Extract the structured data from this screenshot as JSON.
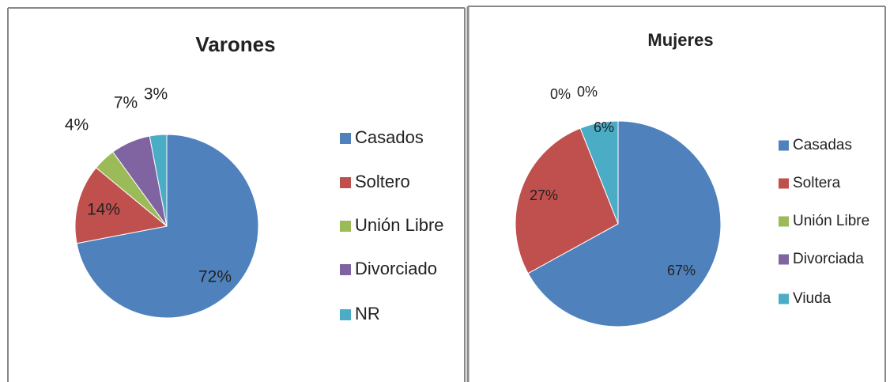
{
  "chart_data": [
    {
      "type": "pie",
      "title": "Varones",
      "categories": [
        "Casados",
        "Soltero",
        "Unión Libre",
        "Divorciado",
        "NR"
      ],
      "values": [
        72,
        14,
        4,
        7,
        3
      ],
      "value_labels": [
        "72%",
        "14%",
        "4%",
        "7%",
        "3%"
      ],
      "colors": [
        "#4f81bd",
        "#c0504d",
        "#9bbb59",
        "#8064a2",
        "#4bacc6"
      ],
      "legend": "right"
    },
    {
      "type": "pie",
      "title": "Mujeres",
      "categories": [
        "Casadas",
        "Soltera",
        "Unión Libre",
        "Divorciada",
        "Viuda"
      ],
      "values": [
        67,
        27,
        0,
        0,
        6
      ],
      "value_labels": [
        "67%",
        "27%",
        "0%",
        "0%",
        "6%"
      ],
      "colors": [
        "#4f81bd",
        "#c0504d",
        "#9bbb59",
        "#8064a2",
        "#4bacc6"
      ],
      "legend": "right"
    }
  ]
}
